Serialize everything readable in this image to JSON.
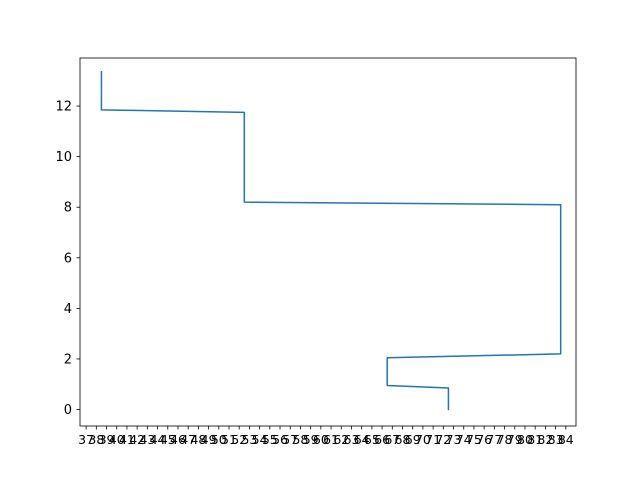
{
  "chart_data": {
    "type": "line",
    "title": "",
    "xlabel": "",
    "ylabel": "",
    "color": "#1f77b4",
    "grid": false,
    "xlim": [
      36.4,
      85
    ],
    "ylim": [
      -0.65,
      13.9
    ],
    "x_ticks": [
      37,
      38,
      39,
      40,
      41,
      42,
      43,
      44,
      45,
      46,
      47,
      48,
      49,
      50,
      51,
      52,
      53,
      54,
      55,
      56,
      57,
      58,
      59,
      60,
      61,
      62,
      63,
      64,
      65,
      66,
      67,
      68,
      69,
      70,
      71,
      72,
      73,
      74,
      75,
      76,
      77,
      78,
      79,
      80,
      81,
      82,
      83,
      84
    ],
    "y_ticks": [
      0,
      2,
      4,
      6,
      8,
      10,
      12
    ],
    "series": [
      {
        "x": [
          72.5,
          72.5,
          66.5,
          66.5,
          83.5,
          83.5,
          52.5,
          52.5,
          38.5,
          38.5
        ],
        "y": [
          0,
          0.85,
          0.95,
          2.05,
          2.2,
          8.1,
          8.2,
          11.75,
          11.85,
          13.35
        ]
      }
    ]
  }
}
